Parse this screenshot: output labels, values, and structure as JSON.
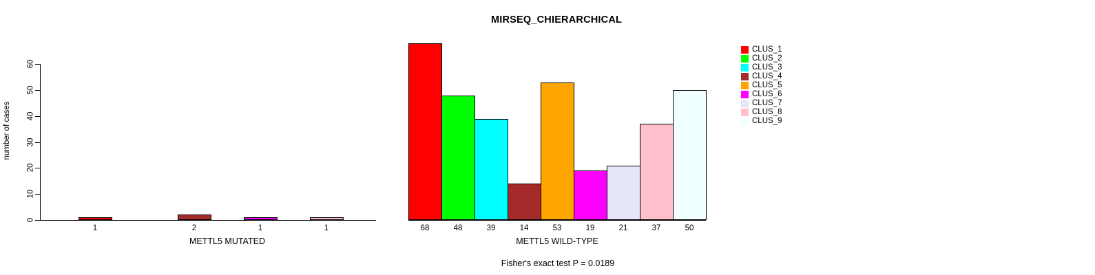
{
  "chart_data": {
    "type": "bar",
    "title": "MIRSEQ_CHIERARCHICAL",
    "ylabel": "number of cases",
    "ylim": [
      0,
      60
    ],
    "yticks": [
      0,
      10,
      20,
      30,
      40,
      50,
      60
    ],
    "grid": false,
    "legend_position": "right",
    "slots_per_panel": 9,
    "annotation": "Fisher's exact test P = 0.0189",
    "legend": [
      {
        "label": "CLUS_1",
        "color": "#FF0000"
      },
      {
        "label": "CLUS_2",
        "color": "#00FF00"
      },
      {
        "label": "CLUS_3",
        "color": "#00FFFF"
      },
      {
        "label": "CLUS_4",
        "color": "#A52A2A"
      },
      {
        "label": "CLUS_5",
        "color": "#FFA500"
      },
      {
        "label": "CLUS_6",
        "color": "#FF00FF"
      },
      {
        "label": "CLUS_7",
        "color": "#E6E6FA"
      },
      {
        "label": "CLUS_8",
        "color": "#FFC0CB"
      },
      {
        "label": "CLUS_9",
        "color": "#F0FFFF"
      }
    ],
    "panels": [
      {
        "xlabel": "METTL5 MUTATED",
        "bars": [
          {
            "cluster": "CLUS_1",
            "slot": 1,
            "value": 1,
            "label": "1"
          },
          {
            "cluster": "CLUS_4",
            "slot": 4,
            "value": 2,
            "label": "2"
          },
          {
            "cluster": "CLUS_6",
            "slot": 6,
            "value": 1,
            "label": "1"
          },
          {
            "cluster": "CLUS_8",
            "slot": 8,
            "value": 1,
            "label": "1"
          }
        ]
      },
      {
        "xlabel": "METTL5 WILD-TYPE",
        "bars": [
          {
            "cluster": "CLUS_1",
            "slot": 1,
            "value": 68,
            "label": "68"
          },
          {
            "cluster": "CLUS_2",
            "slot": 2,
            "value": 48,
            "label": "48"
          },
          {
            "cluster": "CLUS_3",
            "slot": 3,
            "value": 39,
            "label": "39"
          },
          {
            "cluster": "CLUS_4",
            "slot": 4,
            "value": 14,
            "label": "14"
          },
          {
            "cluster": "CLUS_5",
            "slot": 5,
            "value": 53,
            "label": "53"
          },
          {
            "cluster": "CLUS_6",
            "slot": 6,
            "value": 19,
            "label": "19"
          },
          {
            "cluster": "CLUS_7",
            "slot": 7,
            "value": 21,
            "label": "21"
          },
          {
            "cluster": "CLUS_8",
            "slot": 8,
            "value": 37,
            "label": "37"
          },
          {
            "cluster": "CLUS_9",
            "slot": 9,
            "value": 50,
            "label": "50"
          }
        ]
      }
    ]
  }
}
